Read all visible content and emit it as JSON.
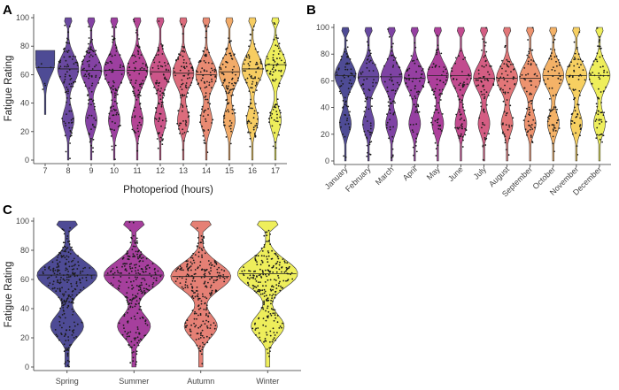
{
  "colors": {
    "palette": [
      "#3f3c8c",
      "#5a3a98",
      "#74339c",
      "#8d2f9a",
      "#a62f92",
      "#bd3c86",
      "#d04f78",
      "#df6a6c",
      "#eb8a63",
      "#f3ab5a",
      "#f6cc54",
      "#eded4d"
    ],
    "points": "#1a1a1a",
    "axis": "#333333"
  },
  "chart_data": [
    {
      "panel": "A",
      "type": "violin",
      "title": "",
      "xlabel": "Photoperiod (hours)",
      "ylabel": "Fatigue Rating",
      "ylim": [
        0,
        100
      ],
      "yticks": [
        0,
        20,
        40,
        60,
        80,
        100
      ],
      "categories": [
        "7",
        "8",
        "9",
        "10",
        "11",
        "12",
        "13",
        "14",
        "15",
        "16",
        "17"
      ],
      "medians": [
        65,
        64,
        63,
        63,
        63,
        62,
        61,
        60,
        62,
        64,
        67
      ],
      "ranges": [
        [
          32,
          77
        ],
        [
          0,
          100
        ],
        [
          0,
          100
        ],
        [
          0,
          100
        ],
        [
          0,
          100
        ],
        [
          0,
          100
        ],
        [
          0,
          100
        ],
        [
          0,
          100
        ],
        [
          0,
          100
        ],
        [
          0,
          100
        ],
        [
          0,
          100
        ]
      ],
      "grid": false,
      "legend": "none"
    },
    {
      "panel": "B",
      "type": "violin",
      "title": "",
      "xlabel": "",
      "ylabel": "",
      "ylim": [
        0,
        100
      ],
      "yticks": [
        0,
        20,
        40,
        60,
        80,
        100
      ],
      "categories": [
        "January",
        "February",
        "March",
        "April",
        "May",
        "June",
        "July",
        "August",
        "September",
        "October",
        "November",
        "December"
      ],
      "medians": [
        64,
        63,
        63,
        62,
        64,
        64,
        62,
        62,
        62,
        64,
        64,
        64
      ],
      "ranges": [
        [
          0,
          100
        ],
        [
          0,
          100
        ],
        [
          0,
          100
        ],
        [
          0,
          100
        ],
        [
          0,
          100
        ],
        [
          0,
          100
        ],
        [
          0,
          100
        ],
        [
          0,
          100
        ],
        [
          0,
          100
        ],
        [
          0,
          100
        ],
        [
          0,
          100
        ],
        [
          0,
          100
        ]
      ],
      "grid": false,
      "legend": "none"
    },
    {
      "panel": "C",
      "type": "violin",
      "title": "",
      "xlabel": "",
      "ylabel": "Fatigue Rating",
      "ylim": [
        0,
        100
      ],
      "yticks": [
        0,
        20,
        40,
        60,
        80,
        100
      ],
      "categories": [
        "Spring",
        "Summer",
        "Autumn",
        "Winter"
      ],
      "medians": [
        63,
        63,
        62,
        64
      ],
      "ranges": [
        [
          0,
          100
        ],
        [
          0,
          100
        ],
        [
          0,
          100
        ],
        [
          0,
          100
        ]
      ],
      "grid": false,
      "legend": "none"
    }
  ]
}
